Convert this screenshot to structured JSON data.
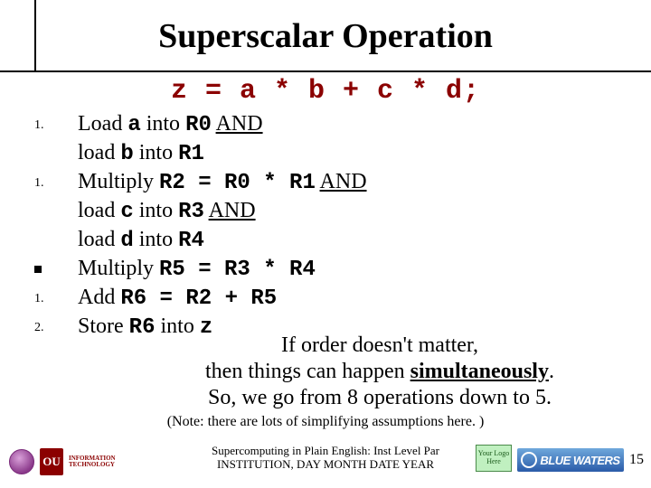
{
  "title": "Superscalar Operation",
  "expression": "z = a * b + c * d;",
  "steps": [
    {
      "marker": "1.",
      "html": "Load <span class='mono'>a</span> into <span class='mono'>R0</span> <span class='und'>AND</span>"
    },
    {
      "marker": "",
      "html": "load <span class='mono'>b</span> into <span class='mono'>R1</span>"
    },
    {
      "marker": "1.",
      "html": "Multiply <span class='mono'>R2 = R0 * R1</span> <span class='und'>AND</span>"
    },
    {
      "marker": "",
      "html": "load <span class='mono'>c</span> into <span class='mono'>R3</span> <span class='und'>AND</span>"
    },
    {
      "marker": "",
      "html": "load <span class='mono'>d</span> into <span class='mono'>R4</span>"
    },
    {
      "marker": "■",
      "html": "Multiply <span class='mono'>R5 = R3 * R4</span>"
    },
    {
      "marker": "1.",
      "html": "Add <span class='mono'>R6 = R2 + R5</span>"
    },
    {
      "marker": "2.",
      "html": "Store <span class='mono'>R6</span> into <span class='mono'>z</span>"
    }
  ],
  "summary_l1": "If order doesn't matter,",
  "summary_l2a": "then things can happen ",
  "summary_l2b": "simultaneously",
  "summary_l2c": ".",
  "summary_l3": "So, we go from 8 operations down to 5.",
  "note": "(Note: there are lots of simplifying assumptions here. )",
  "footer_l1": "Supercomputing in Plain English: Inst Level Par",
  "footer_l2": "INSTITUTION, DAY MONTH DATE YEAR",
  "ou_text": "OU",
  "it_text1": "INFORMATION",
  "it_text2": "TECHNOLOGY",
  "yourlogo": "Your Logo Here",
  "bluewaters": "BLUE WATERS",
  "pagenum": "15",
  "colors": {
    "accent": "#8b0000",
    "text": "#000000",
    "background": "#ffffff"
  }
}
